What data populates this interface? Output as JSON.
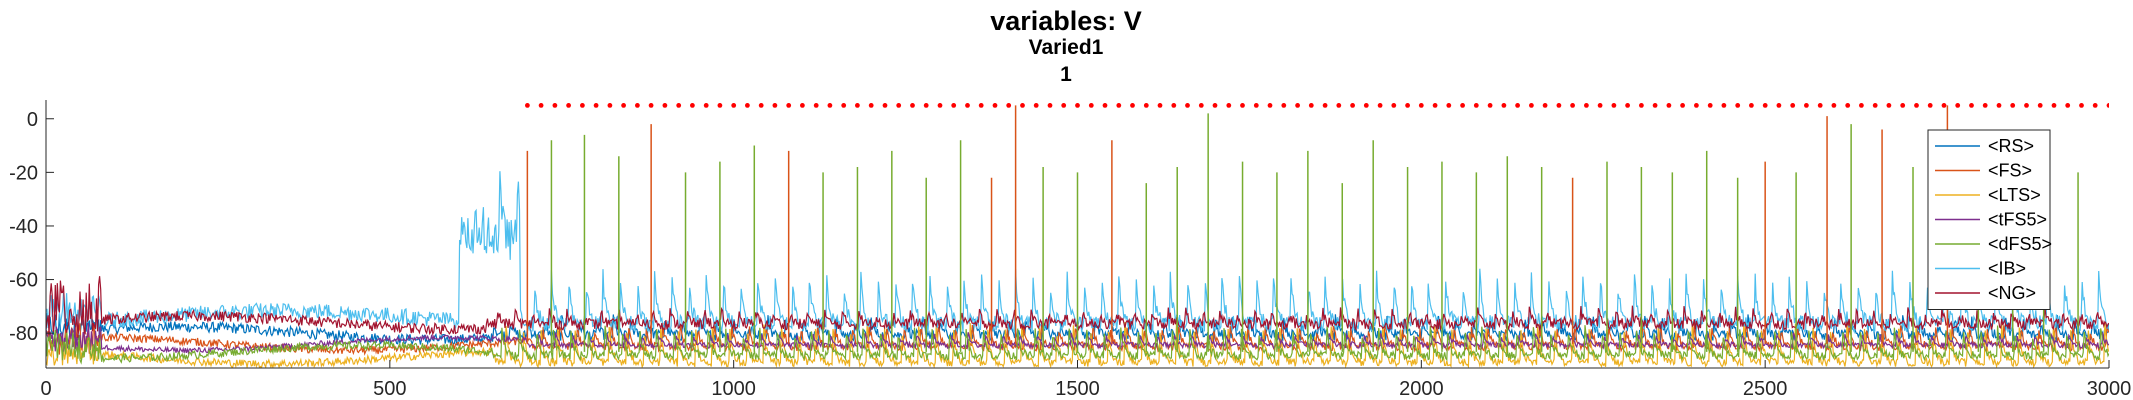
{
  "chart_data": {
    "type": "line",
    "title": "variables: V",
    "subtitle_lines": [
      "Varied1",
      "1"
    ],
    "xlabel": "",
    "ylabel": "",
    "xlim": [
      0,
      3000
    ],
    "ylim": [
      -93,
      7
    ],
    "x_ticks": [
      0,
      500,
      1000,
      1500,
      2000,
      2500,
      3000
    ],
    "y_ticks": [
      0,
      -20,
      -40,
      -60,
      -80
    ],
    "legend_position": "right",
    "grid": false,
    "series": [
      {
        "name": "<RS>",
        "color": "#0072BD",
        "baseline": -80,
        "amp": 6,
        "period": 25,
        "noise": 2,
        "burst_from": 650
      },
      {
        "name": "<FS>",
        "color": "#D95319",
        "baseline": -84,
        "amp": 8,
        "period": 25,
        "noise": 1.5,
        "burst_from": 700
      },
      {
        "name": "<LTS>",
        "color": "#EDB120",
        "baseline": -89,
        "amp": 14,
        "period": 25,
        "noise": 1.5,
        "burst_from": 650
      },
      {
        "name": "<tFS5>",
        "color": "#7E2F8E",
        "baseline": -84,
        "amp": 4,
        "period": 25,
        "noise": 1.0,
        "burst_from": 700
      },
      {
        "name": "<dFS5>",
        "color": "#77AC30",
        "baseline": -87,
        "amp": 10,
        "period": 25,
        "noise": 1.5,
        "burst_from": 650
      },
      {
        "name": "<IB>",
        "color": "#4DBEEE",
        "baseline": -74,
        "amp": 18,
        "period": 25,
        "noise": 3,
        "burst_from": 650
      },
      {
        "name": "<NG>",
        "color": "#A2142F",
        "baseline": -76,
        "amp": 5,
        "period": 25,
        "noise": 2,
        "burst_from": 640
      }
    ],
    "spike_events": {
      "y": 5,
      "marker": "dot",
      "color": "#FF0000",
      "x_start": 700,
      "x_end": 3000,
      "spacing": 20
    },
    "large_spikes": [
      {
        "x": 700,
        "series": "<FS>",
        "y": -12
      },
      {
        "x": 735,
        "series": "<dFS5>",
        "y": -8
      },
      {
        "x": 783,
        "series": "<dFS5>",
        "y": -6
      },
      {
        "x": 833,
        "series": "<dFS5>",
        "y": -14
      },
      {
        "x": 880,
        "series": "<FS>",
        "y": -2
      },
      {
        "x": 930,
        "series": "<dFS5>",
        "y": -20
      },
      {
        "x": 980,
        "series": "<dFS5>",
        "y": -16
      },
      {
        "x": 1030,
        "series": "<dFS5>",
        "y": -10
      },
      {
        "x": 1080,
        "series": "<FS>",
        "y": -12
      },
      {
        "x": 1130,
        "series": "<dFS5>",
        "y": -20
      },
      {
        "x": 1180,
        "series": "<dFS5>",
        "y": -18
      },
      {
        "x": 1230,
        "series": "<dFS5>",
        "y": -12
      },
      {
        "x": 1280,
        "series": "<dFS5>",
        "y": -22
      },
      {
        "x": 1330,
        "series": "<dFS5>",
        "y": -8
      },
      {
        "x": 1375,
        "series": "<FS>",
        "y": -22
      },
      {
        "x": 1410,
        "series": "<FS>",
        "y": 5
      },
      {
        "x": 1450,
        "series": "<dFS5>",
        "y": -18
      },
      {
        "x": 1500,
        "series": "<dFS5>",
        "y": -20
      },
      {
        "x": 1550,
        "series": "<FS>",
        "y": -8
      },
      {
        "x": 1600,
        "series": "<dFS5>",
        "y": -24
      },
      {
        "x": 1645,
        "series": "<dFS5>",
        "y": -18
      },
      {
        "x": 1690,
        "series": "<dFS5>",
        "y": 2
      },
      {
        "x": 1740,
        "series": "<dFS5>",
        "y": -16
      },
      {
        "x": 1790,
        "series": "<dFS5>",
        "y": -20
      },
      {
        "x": 1835,
        "series": "<dFS5>",
        "y": -12
      },
      {
        "x": 1885,
        "series": "<dFS5>",
        "y": -24
      },
      {
        "x": 1930,
        "series": "<dFS5>",
        "y": -8
      },
      {
        "x": 1980,
        "series": "<dFS5>",
        "y": -18
      },
      {
        "x": 2030,
        "series": "<dFS5>",
        "y": -16
      },
      {
        "x": 2080,
        "series": "<dFS5>",
        "y": -20
      },
      {
        "x": 2125,
        "series": "<dFS5>",
        "y": -14
      },
      {
        "x": 2175,
        "series": "<dFS5>",
        "y": -18
      },
      {
        "x": 2220,
        "series": "<FS>",
        "y": -22
      },
      {
        "x": 2270,
        "series": "<dFS5>",
        "y": -16
      },
      {
        "x": 2320,
        "series": "<dFS5>",
        "y": -18
      },
      {
        "x": 2365,
        "series": "<dFS5>",
        "y": -20
      },
      {
        "x": 2415,
        "series": "<dFS5>",
        "y": -12
      },
      {
        "x": 2460,
        "series": "<dFS5>",
        "y": -22
      },
      {
        "x": 2500,
        "series": "<FS>",
        "y": -16
      },
      {
        "x": 2545,
        "series": "<dFS5>",
        "y": -20
      },
      {
        "x": 2590,
        "series": "<FS>",
        "y": 1
      },
      {
        "x": 2625,
        "series": "<dFS5>",
        "y": -2
      },
      {
        "x": 2670,
        "series": "<FS>",
        "y": -4
      },
      {
        "x": 2715,
        "series": "<dFS5>",
        "y": -18
      },
      {
        "x": 2765,
        "series": "<FS>",
        "y": 5
      },
      {
        "x": 2810,
        "series": "<dFS5>",
        "y": -20
      },
      {
        "x": 2860,
        "series": "<dFS5>",
        "y": -18
      },
      {
        "x": 2905,
        "series": "<dFS5>",
        "y": -10
      },
      {
        "x": 2955,
        "series": "<dFS5>",
        "y": -20
      }
    ]
  }
}
